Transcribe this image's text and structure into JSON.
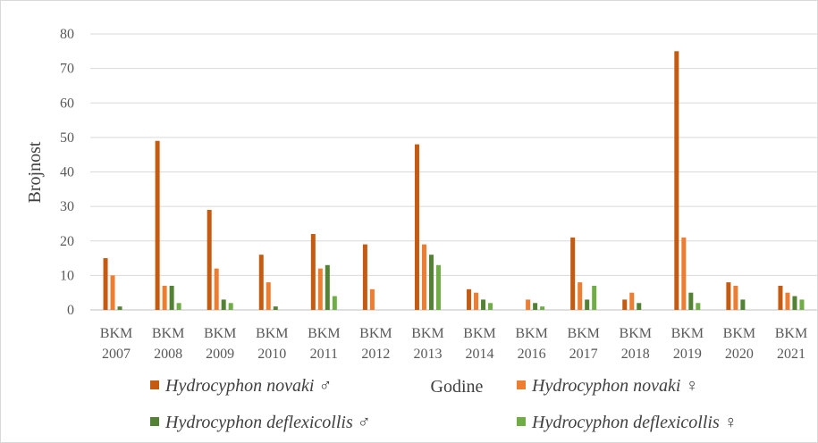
{
  "chart_data": {
    "type": "bar",
    "categories": [
      [
        "BKM",
        "2007"
      ],
      [
        "BKM",
        "2008"
      ],
      [
        "BKM",
        "2009"
      ],
      [
        "BKM",
        "2010"
      ],
      [
        "BKM",
        "2011"
      ],
      [
        "BKM",
        "2012"
      ],
      [
        "BKM",
        "2013"
      ],
      [
        "BKM",
        "2014"
      ],
      [
        "BKM",
        "2016"
      ],
      [
        "BKM",
        "2017"
      ],
      [
        "BKM",
        "2018"
      ],
      [
        "BKM",
        "2019"
      ],
      [
        "BKM",
        "2020"
      ],
      [
        "BKM",
        "2021"
      ]
    ],
    "series": [
      {
        "name": "Hydrocyphon novaki",
        "symbol": "♂",
        "color": "#C55A11",
        "values": [
          15,
          49,
          29,
          16,
          22,
          19,
          48,
          6,
          0,
          21,
          3,
          75,
          8,
          7
        ]
      },
      {
        "name": "Hydrocyphon novaki",
        "symbol": "♀",
        "color": "#ED7D31",
        "values": [
          10,
          7,
          12,
          8,
          12,
          6,
          19,
          5,
          3,
          8,
          5,
          21,
          7,
          5
        ]
      },
      {
        "name": "Hydrocyphon deflexicollis",
        "symbol": "♂",
        "color": "#548235",
        "values": [
          1,
          7,
          3,
          1,
          13,
          0,
          16,
          3,
          2,
          3,
          2,
          5,
          3,
          4
        ]
      },
      {
        "name": "Hydrocyphon deflexicollis",
        "symbol": "♀",
        "color": "#70AD47",
        "values": [
          0,
          2,
          2,
          0,
          4,
          0,
          13,
          2,
          1,
          7,
          0,
          2,
          0,
          3
        ]
      }
    ],
    "xlabel": "Godine",
    "ylabel": "Brojnost",
    "ylim": [
      0,
      80
    ],
    "yticks": [
      0,
      10,
      20,
      30,
      40,
      50,
      60,
      70,
      80
    ],
    "grid": "horizontal",
    "legend": "bottom"
  }
}
